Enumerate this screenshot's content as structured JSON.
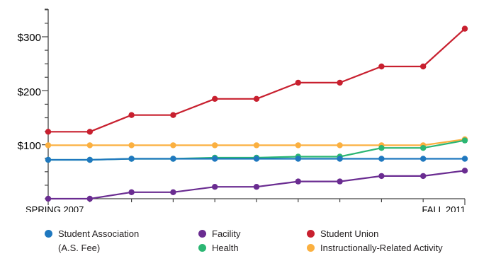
{
  "chart_data": {
    "type": "line",
    "title": "",
    "xlabel": "",
    "ylabel": "",
    "x_tick_labels": [
      "SPRING 2007",
      "FALL 2011"
    ],
    "y_ticks": [
      100,
      200,
      300
    ],
    "y_tick_labels": [
      "$100",
      "$200",
      "$300"
    ],
    "ylim": [
      0,
      350
    ],
    "points_per_series": 11,
    "series": [
      {
        "name": "Student Association",
        "name_line2": "(A.S. Fee)",
        "color": "#1f78bf",
        "values": [
          72,
          72,
          74,
          74,
          74,
          74,
          74,
          74,
          74,
          74,
          74
        ]
      },
      {
        "name": "Facility",
        "color": "#6a2c91",
        "values": [
          0,
          0,
          12,
          12,
          22,
          22,
          32,
          32,
          42,
          42,
          52
        ]
      },
      {
        "name": "Student Union",
        "color": "#c8202f",
        "values": [
          124,
          124,
          155,
          155,
          185,
          185,
          215,
          215,
          245,
          245,
          315
        ]
      },
      {
        "name": "Health",
        "color": "#2bb673",
        "values": [
          72,
          72,
          74,
          74,
          76,
          76,
          78,
          78,
          94,
          94,
          108
        ]
      },
      {
        "name": "Instructionally-Related Activity",
        "color": "#fbb040",
        "values": [
          99,
          99,
          99,
          99,
          99,
          99,
          99,
          99,
          99,
          99,
          110
        ]
      }
    ]
  }
}
